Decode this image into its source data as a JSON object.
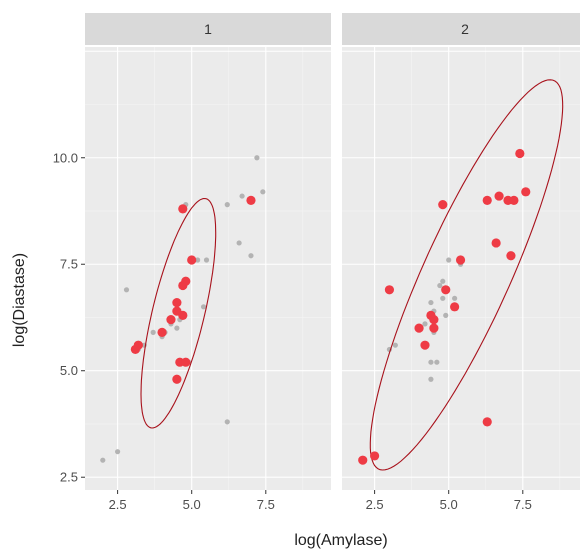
{
  "chart_data": {
    "type": "scatter",
    "xlabel": "log(Amylase)",
    "ylabel": "log(Diastase)",
    "x_ticks": [
      "2.5",
      "5.0",
      "7.5"
    ],
    "y_ticks": [
      "2.5",
      "5.0",
      "7.5",
      "10.0"
    ],
    "xlim": [
      1.4,
      9.7
    ],
    "ylim": [
      2.2,
      12.6
    ],
    "grid": true,
    "colors": {
      "highlight": "#ee3b45",
      "background_points": "#b3b3b3",
      "ellipse": "#a8121c"
    },
    "panels": [
      {
        "strip": "1",
        "background_points": [
          [
            2.0,
            2.9
          ],
          [
            2.5,
            3.1
          ],
          [
            2.8,
            6.9
          ],
          [
            3.2,
            5.5
          ],
          [
            3.4,
            5.6
          ],
          [
            3.7,
            5.9
          ],
          [
            4.0,
            5.8
          ],
          [
            4.1,
            5.9
          ],
          [
            4.3,
            6.1
          ],
          [
            4.5,
            6.0
          ],
          [
            4.6,
            6.2
          ],
          [
            4.8,
            8.9
          ],
          [
            4.9,
            5.2
          ],
          [
            5.2,
            7.6
          ],
          [
            5.4,
            6.5
          ],
          [
            5.5,
            7.6
          ],
          [
            6.2,
            3.8
          ],
          [
            6.2,
            8.9
          ],
          [
            6.6,
            8.0
          ],
          [
            6.7,
            9.1
          ],
          [
            7.0,
            7.7
          ],
          [
            7.2,
            10.0
          ],
          [
            7.4,
            9.2
          ]
        ],
        "highlight_points": [
          [
            3.1,
            5.5
          ],
          [
            3.2,
            5.6
          ],
          [
            4.0,
            5.9
          ],
          [
            4.3,
            6.2
          ],
          [
            4.5,
            6.4
          ],
          [
            4.5,
            6.6
          ],
          [
            4.5,
            4.8
          ],
          [
            4.6,
            5.2
          ],
          [
            4.7,
            6.3
          ],
          [
            4.7,
            7.0
          ],
          [
            4.7,
            8.8
          ],
          [
            4.8,
            5.2
          ],
          [
            4.8,
            7.1
          ],
          [
            5.0,
            7.6
          ],
          [
            7.0,
            9.0
          ]
        ],
        "ellipse": {
          "center": [
            4.55,
            6.35
          ],
          "semi_major": 2.85,
          "semi_minor": 0.85,
          "angle_deg": 70
        }
      },
      {
        "strip": "2",
        "background_points": [
          [
            3.0,
            5.5
          ],
          [
            3.2,
            5.6
          ],
          [
            4.2,
            6.1
          ],
          [
            4.4,
            5.2
          ],
          [
            4.4,
            4.8
          ],
          [
            4.5,
            5.9
          ],
          [
            4.6,
            5.2
          ],
          [
            4.7,
            7.0
          ],
          [
            4.8,
            7.1
          ],
          [
            4.8,
            6.7
          ],
          [
            4.9,
            6.9
          ],
          [
            5.0,
            7.6
          ],
          [
            5.2,
            6.7
          ],
          [
            5.4,
            7.5
          ],
          [
            4.4,
            6.6
          ],
          [
            4.5,
            6.4
          ],
          [
            4.9,
            6.3
          ]
        ],
        "highlight_points": [
          [
            2.1,
            2.9
          ],
          [
            2.5,
            3.0
          ],
          [
            3.0,
            6.9
          ],
          [
            4.0,
            6.0
          ],
          [
            4.2,
            5.6
          ],
          [
            4.4,
            6.3
          ],
          [
            4.5,
            6.0
          ],
          [
            4.5,
            6.2
          ],
          [
            4.8,
            8.9
          ],
          [
            4.9,
            6.9
          ],
          [
            5.2,
            6.5
          ],
          [
            5.4,
            7.6
          ],
          [
            6.3,
            9.0
          ],
          [
            6.3,
            3.8
          ],
          [
            6.6,
            8.0
          ],
          [
            6.7,
            9.1
          ],
          [
            7.0,
            9.0
          ],
          [
            7.1,
            7.7
          ],
          [
            7.2,
            9.0
          ],
          [
            7.4,
            10.1
          ],
          [
            7.6,
            9.2
          ]
        ],
        "ellipse": {
          "center": [
            5.6,
            7.25
          ],
          "semi_major": 5.45,
          "semi_minor": 1.35,
          "angle_deg": 56
        }
      }
    ]
  }
}
